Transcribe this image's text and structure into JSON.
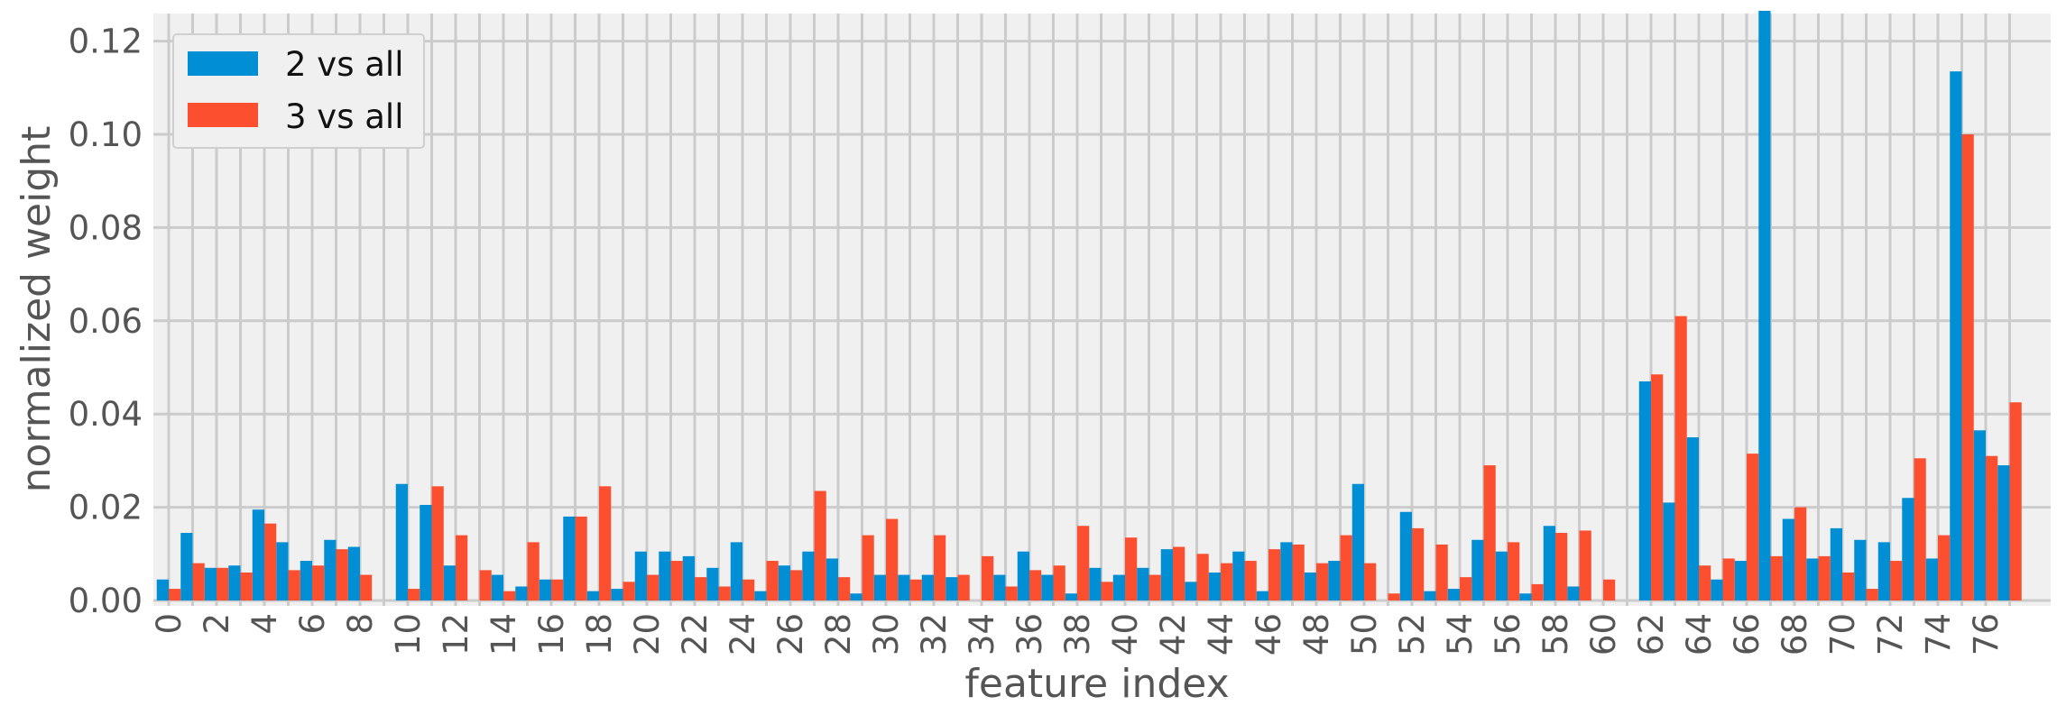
{
  "chart_data": {
    "type": "bar",
    "xlabel": "feature index",
    "ylabel": "normalized weight",
    "ylim": [
      0,
      0.133
    ],
    "yticks": [
      "0.00",
      "0.02",
      "0.04",
      "0.06",
      "0.08",
      "0.10",
      "0.12"
    ],
    "grid": true,
    "legend_position": "top-left",
    "x": [
      0,
      1,
      2,
      3,
      4,
      5,
      6,
      7,
      8,
      9,
      10,
      11,
      12,
      13,
      14,
      15,
      16,
      17,
      18,
      19,
      20,
      21,
      22,
      23,
      24,
      25,
      26,
      27,
      28,
      29,
      30,
      31,
      32,
      33,
      34,
      35,
      36,
      37,
      38,
      39,
      40,
      41,
      42,
      43,
      44,
      45,
      46,
      47,
      48,
      49,
      50,
      51,
      52,
      53,
      54,
      55,
      56,
      57,
      58,
      59,
      60,
      61,
      62,
      63,
      64,
      65,
      66,
      67,
      68,
      69,
      70,
      71,
      72,
      73,
      74,
      75,
      76,
      77
    ],
    "xtick_labels": [
      "0",
      "2",
      "4",
      "6",
      "8",
      "10",
      "12",
      "14",
      "16",
      "18",
      "20",
      "22",
      "24",
      "26",
      "28",
      "30",
      "32",
      "34",
      "36",
      "38",
      "40",
      "42",
      "44",
      "46",
      "48",
      "50",
      "52",
      "54",
      "56",
      "58",
      "60",
      "62",
      "64",
      "66",
      "68",
      "70",
      "72",
      "74",
      "76"
    ],
    "series": [
      {
        "name": "2 vs all",
        "color": "#008fd5",
        "values": [
          0.0045,
          0.0145,
          0.007,
          0.0075,
          0.0195,
          0.0125,
          0.0085,
          0.013,
          0.0115,
          0,
          0.025,
          0.0205,
          0.0075,
          0,
          0.0055,
          0.003,
          0.0045,
          0.018,
          0.002,
          0.0025,
          0.0105,
          0.0105,
          0.0095,
          0.007,
          0.0125,
          0.002,
          0.0075,
          0.0105,
          0.009,
          0.0015,
          0.0055,
          0.0055,
          0.0055,
          0.005,
          0,
          0.0055,
          0.0105,
          0.0055,
          0.0015,
          0.007,
          0.0055,
          0.007,
          0.011,
          0.004,
          0.006,
          0.0105,
          0.002,
          0.0125,
          0.006,
          0.0085,
          0.025,
          0,
          0.019,
          0.002,
          0.0025,
          0.013,
          0.0105,
          0.0015,
          0.016,
          0.003,
          0,
          0,
          0.047,
          0.021,
          0.035,
          0.0045,
          0.0085,
          0.1265,
          0.0175,
          0.009,
          0.0155,
          0.013,
          0.0125,
          0.022,
          0.009,
          0.1135,
          0.0365,
          0.029
        ]
      },
      {
        "name": "3 vs all",
        "color": "#fc4f30",
        "values": [
          0.0025,
          0.008,
          0.007,
          0.006,
          0.0165,
          0.0065,
          0.0075,
          0.011,
          0.0055,
          0,
          0.0025,
          0.0245,
          0.014,
          0.0065,
          0.002,
          0.0125,
          0.0045,
          0.018,
          0.0245,
          0.004,
          0.0055,
          0.0085,
          0.005,
          0.003,
          0.0045,
          0.0085,
          0.0065,
          0.0235,
          0.005,
          0.014,
          0.0175,
          0.0045,
          0.014,
          0.0055,
          0.0095,
          0.003,
          0.0065,
          0.0075,
          0.016,
          0.004,
          0.0135,
          0.0055,
          0.0115,
          0.01,
          0.008,
          0.0085,
          0.011,
          0.012,
          0.008,
          0.014,
          0.008,
          0.0015,
          0.0155,
          0.012,
          0.005,
          0.029,
          0.0125,
          0.0035,
          0.0145,
          0.015,
          0.0045,
          0,
          0.0485,
          0.061,
          0.0075,
          0.009,
          0.0315,
          0.0095,
          0.02,
          0.0095,
          0.006,
          0.0025,
          0.0085,
          0.0305,
          0.014,
          0.1,
          0.031,
          0.0425
        ]
      }
    ]
  }
}
